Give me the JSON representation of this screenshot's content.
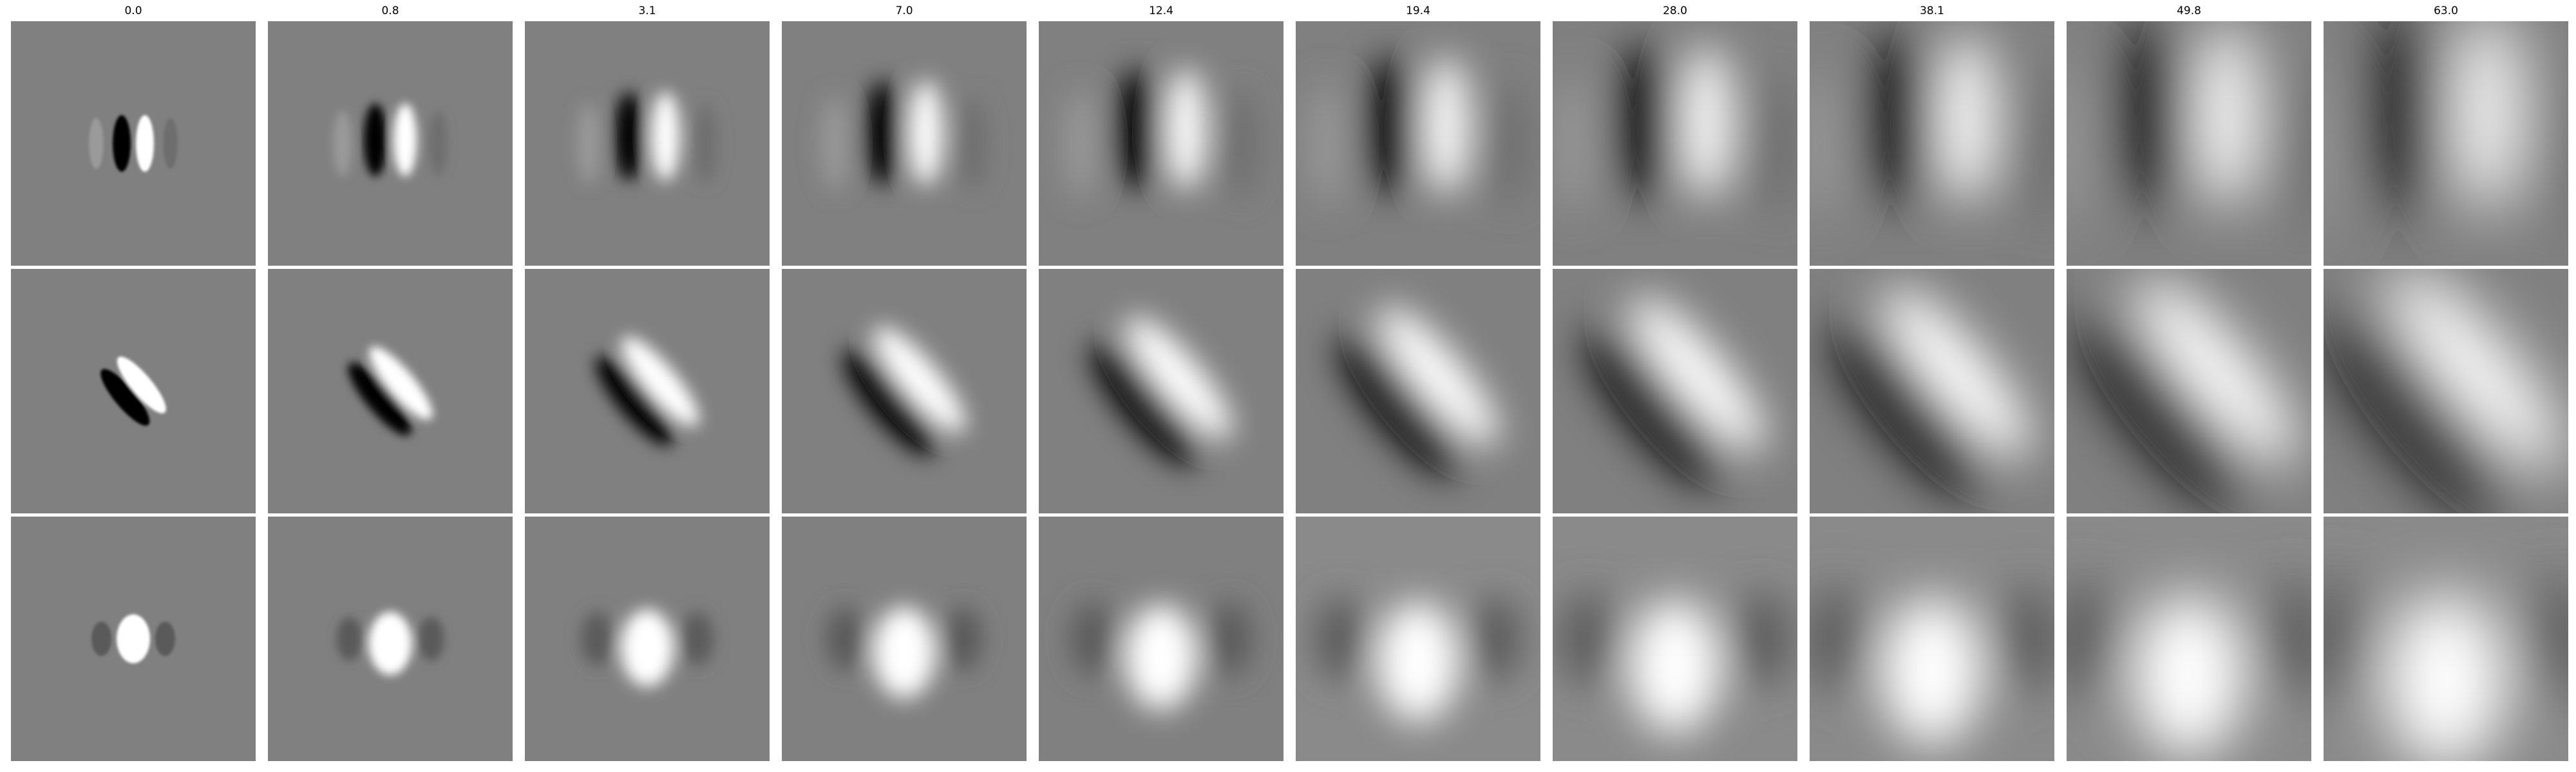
{
  "columns": [
    "0.0",
    "0.8",
    "3.1",
    "7.0",
    "12.4",
    "19.4",
    "28.0",
    "38.1",
    "49.8",
    "63.0"
  ],
  "rows": [
    {
      "name": "row-1",
      "pattern": "vertical-dipole-dark-left"
    },
    {
      "name": "row-2",
      "pattern": "diagonal-dipole-dark-lower-left"
    },
    {
      "name": "row-3",
      "pattern": "center-bright-blob"
    }
  ],
  "colors": {
    "background": "#ffffff",
    "tile_base": "#808080"
  }
}
